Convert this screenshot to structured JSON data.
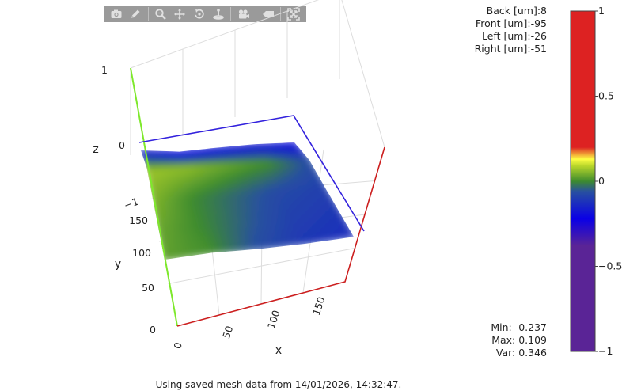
{
  "toolbar": {
    "buttons": [
      {
        "name": "camera-icon",
        "label": "Download plot"
      },
      {
        "name": "pencil-icon",
        "label": "Edit"
      },
      {
        "name": "zoom-icon",
        "label": "Zoom"
      },
      {
        "name": "pan-icon",
        "label": "Pan"
      },
      {
        "name": "orbit-icon",
        "label": "Orbital rotation"
      },
      {
        "name": "turntable-icon",
        "label": "Turntable rotation"
      },
      {
        "name": "video-camera-icon",
        "label": "Reset camera"
      },
      {
        "name": "tag-icon",
        "label": "Toggle hover"
      },
      {
        "name": "autoscale-icon",
        "label": "Autoscale"
      }
    ]
  },
  "probe": {
    "back": "Back [um]:8",
    "front": "Front [um]:-95",
    "left": "Left [um]:-26",
    "right": "Right [um]:-51"
  },
  "stats": {
    "min": "Min: -0.237",
    "max": "Max: 0.109",
    "var": "Var: 0.346"
  },
  "footer": "Using saved mesh data from 14/01/2026, 14:32:47.",
  "chart_data": {
    "type": "surface",
    "title": "",
    "xlabel": "x",
    "ylabel": "y",
    "zlabel": "z",
    "x_ticks": [
      "0",
      "50",
      "100",
      "150"
    ],
    "y_ticks": [
      "0",
      "50",
      "100",
      "150"
    ],
    "z_ticks": [
      "1",
      "0",
      "−1"
    ],
    "x_range": [
      0,
      200
    ],
    "y_range": [
      0,
      200
    ],
    "z_range": [
      -1.6,
      1
    ],
    "grid": true,
    "x": [
      0,
      50,
      100,
      150,
      200
    ],
    "y": [
      0,
      50,
      100,
      150,
      200
    ],
    "z": [
      [
        0.05,
        0.03,
        -0.05,
        -0.1,
        -0.12
      ],
      [
        0.06,
        0.02,
        -0.03,
        -0.08,
        -0.1
      ],
      [
        0.08,
        0.02,
        -0.02,
        -0.06,
        -0.08
      ],
      [
        0.1,
        0.09,
        0.06,
        0.03,
        -0.05
      ],
      [
        -0.15,
        -0.23,
        -0.2,
        -0.18,
        -0.2
      ]
    ],
    "colorbar": {
      "ticks": [
        "1",
        "0.5",
        "0",
        "−0.5",
        "−1"
      ],
      "range": [
        -1,
        1
      ],
      "stops": [
        {
          "value": -1.0,
          "color": "#5a2496"
        },
        {
          "value": -0.38,
          "color": "#5a2496"
        },
        {
          "value": -0.22,
          "color": "#0a00e6"
        },
        {
          "value": -0.06,
          "color": "#2850a0"
        },
        {
          "value": 0.0,
          "color": "#3d8b2e"
        },
        {
          "value": 0.09,
          "color": "#b8d62a"
        },
        {
          "value": 0.13,
          "color": "#ffff44"
        },
        {
          "value": 0.2,
          "color": "#dd2222"
        },
        {
          "value": 1.0,
          "color": "#dd2222"
        }
      ]
    }
  }
}
